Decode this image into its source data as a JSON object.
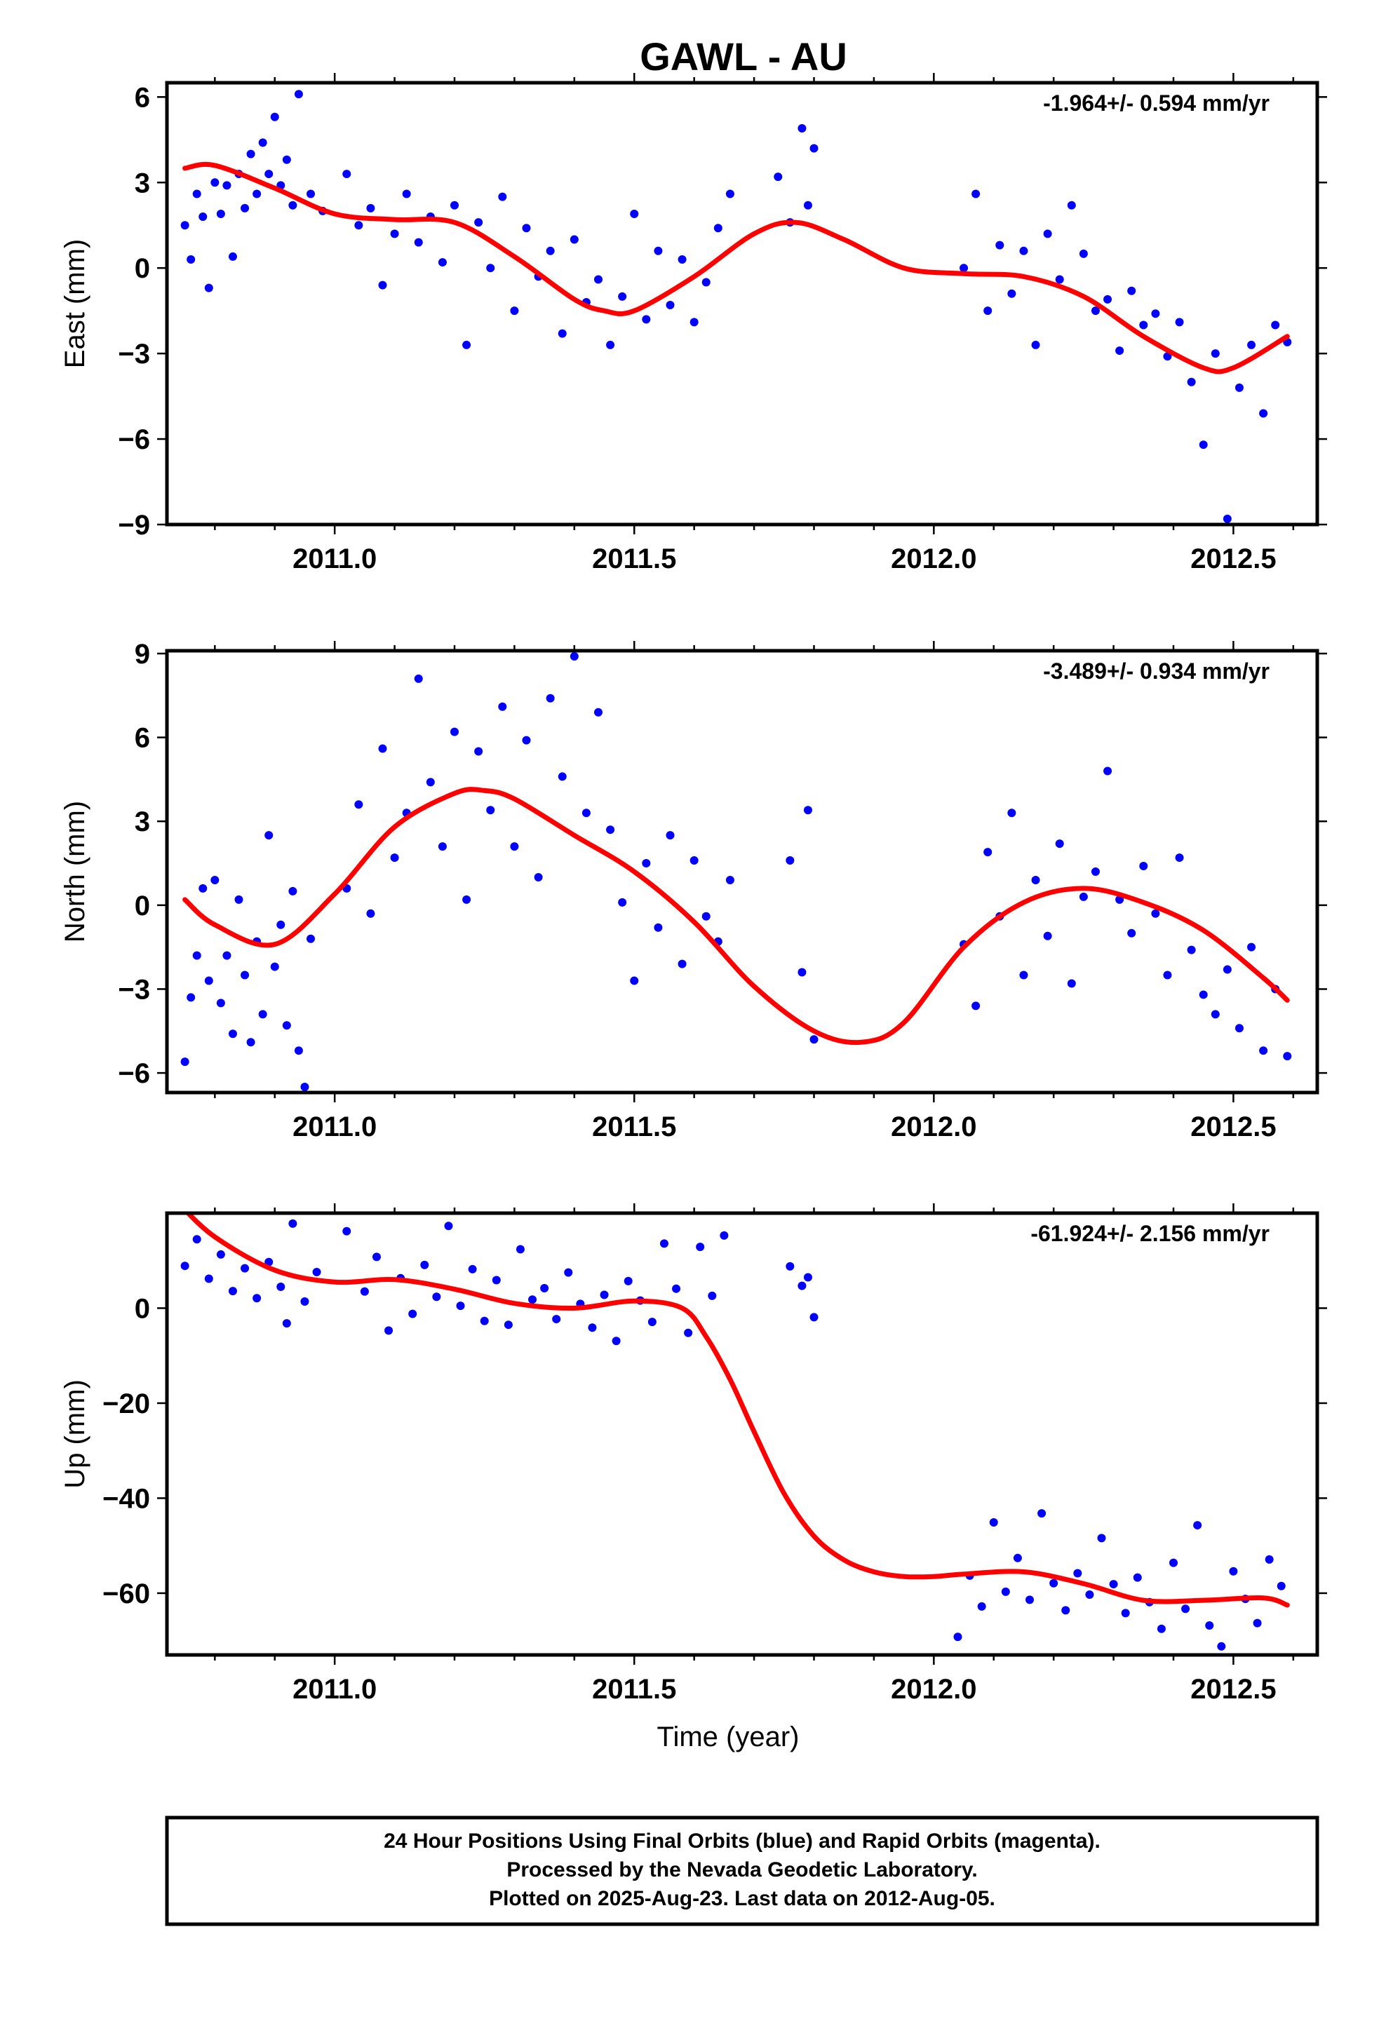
{
  "title": "GAWL - AU",
  "footer": [
    "24 Hour Positions Using Final Orbits (blue) and Rapid Orbits (magenta).",
    "Processed by the Nevada Geodetic Laboratory.",
    "Plotted on 2025-Aug-23. Last data on 2012-Aug-05."
  ],
  "colors": {
    "points": "#0000ff",
    "fit": "#ff0000",
    "frame": "#000000"
  },
  "chart_data": [
    {
      "type": "scatter",
      "component": "East",
      "ylabel": "East (mm)",
      "xlabel": "",
      "rate": "-1.964+/- 0.594 mm/yr",
      "xlim": [
        2010.72,
        2012.64
      ],
      "ylim": [
        -9,
        6.5
      ],
      "xticks": [
        2011.0,
        2011.5,
        2012.0,
        2012.5
      ],
      "xtick_labels": [
        "2011.0",
        "2011.5",
        "2012.0",
        "2012.5"
      ],
      "yticks": [
        -9,
        -6,
        -3,
        0,
        3,
        6
      ],
      "ytick_labels": [
        "−9",
        "−6",
        "−3",
        "0",
        "3",
        "6"
      ],
      "fit": {
        "x": [
          2010.75,
          2010.8,
          2010.9,
          2011.0,
          2011.1,
          2011.2,
          2011.3,
          2011.4,
          2011.45,
          2011.5,
          2011.6,
          2011.7,
          2011.77,
          2011.85,
          2011.95,
          2012.05,
          2012.15,
          2012.25,
          2012.35,
          2012.45,
          2012.5,
          2012.59
        ],
        "y": [
          3.5,
          3.6,
          2.8,
          1.9,
          1.7,
          1.6,
          0.4,
          -1.1,
          -1.5,
          -1.5,
          -0.3,
          1.2,
          1.6,
          1.0,
          0.0,
          -0.2,
          -0.3,
          -1.0,
          -2.4,
          -3.5,
          -3.5,
          -2.4
        ]
      },
      "series": [
        {
          "name": "Final Orbits",
          "x": [
            2010.75,
            2010.76,
            2010.77,
            2010.78,
            2010.79,
            2010.8,
            2010.81,
            2010.82,
            2010.83,
            2010.84,
            2010.85,
            2010.86,
            2010.87,
            2010.88,
            2010.89,
            2010.9,
            2010.91,
            2010.92,
            2010.93,
            2010.94,
            2010.96,
            2010.98,
            2011.02,
            2011.04,
            2011.06,
            2011.08,
            2011.1,
            2011.12,
            2011.14,
            2011.16,
            2011.18,
            2011.2,
            2011.22,
            2011.24,
            2011.26,
            2011.28,
            2011.3,
            2011.32,
            2011.34,
            2011.36,
            2011.38,
            2011.4,
            2011.42,
            2011.44,
            2011.46,
            2011.48,
            2011.5,
            2011.52,
            2011.54,
            2011.56,
            2011.58,
            2011.6,
            2011.62,
            2011.64,
            2011.66,
            2011.74,
            2011.76,
            2011.78,
            2011.79,
            2011.8,
            2012.05,
            2012.07,
            2012.09,
            2012.11,
            2012.13,
            2012.15,
            2012.17,
            2012.19,
            2012.21,
            2012.23,
            2012.25,
            2012.27,
            2012.29,
            2012.31,
            2012.33,
            2012.35,
            2012.37,
            2012.39,
            2012.41,
            2012.43,
            2012.45,
            2012.47,
            2012.49,
            2012.51,
            2012.53,
            2012.55,
            2012.57,
            2012.59
          ],
          "y": [
            1.5,
            0.3,
            2.6,
            1.8,
            -0.7,
            3.0,
            1.9,
            2.9,
            0.4,
            3.3,
            2.1,
            4.0,
            2.6,
            4.4,
            3.3,
            5.3,
            2.9,
            3.8,
            2.2,
            6.1,
            2.6,
            2.0,
            3.3,
            1.5,
            2.1,
            -0.6,
            1.2,
            2.6,
            0.9,
            1.8,
            0.2,
            2.2,
            -2.7,
            1.6,
            0.0,
            2.5,
            -1.5,
            1.4,
            -0.3,
            0.6,
            -2.3,
            1.0,
            -1.2,
            -0.4,
            -2.7,
            -1.0,
            1.9,
            -1.8,
            0.6,
            -1.3,
            0.3,
            -1.9,
            -0.5,
            1.4,
            2.6,
            3.2,
            1.6,
            4.9,
            2.2,
            4.2,
            0.0,
            2.6,
            -1.5,
            0.8,
            -0.9,
            0.6,
            -2.7,
            1.2,
            -0.4,
            2.2,
            0.5,
            -1.5,
            -1.1,
            -2.9,
            -0.8,
            -2.0,
            -1.6,
            -3.1,
            -1.9,
            -4.0,
            -6.2,
            -3.0,
            -8.8,
            -4.2,
            -2.7,
            -5.1,
            -2.0,
            -2.6
          ]
        }
      ]
    },
    {
      "type": "scatter",
      "component": "North",
      "ylabel": "North (mm)",
      "xlabel": "",
      "rate": "-3.489+/- 0.934 mm/yr",
      "xlim": [
        2010.72,
        2012.64
      ],
      "ylim": [
        -6.7,
        9.1
      ],
      "xticks": [
        2011.0,
        2011.5,
        2012.0,
        2012.5
      ],
      "xtick_labels": [
        "2011.0",
        "2011.5",
        "2012.0",
        "2012.5"
      ],
      "yticks": [
        -6,
        -3,
        0,
        3,
        6,
        9
      ],
      "ytick_labels": [
        "−6",
        "−3",
        "0",
        "3",
        "6",
        "9"
      ],
      "fit": {
        "x": [
          2010.75,
          2010.8,
          2010.9,
          2011.0,
          2011.1,
          2011.2,
          2011.25,
          2011.3,
          2011.4,
          2011.5,
          2011.6,
          2011.7,
          2011.8,
          2011.88,
          2011.95,
          2012.05,
          2012.15,
          2012.25,
          2012.35,
          2012.45,
          2012.55,
          2012.59
        ],
        "y": [
          0.2,
          -0.7,
          -1.4,
          0.4,
          2.8,
          4.0,
          4.1,
          3.8,
          2.5,
          1.2,
          -0.6,
          -2.9,
          -4.5,
          -4.9,
          -4.2,
          -1.5,
          0.1,
          0.6,
          0.1,
          -0.9,
          -2.6,
          -3.4
        ]
      },
      "series": [
        {
          "name": "Final Orbits",
          "x": [
            2010.75,
            2010.76,
            2010.77,
            2010.78,
            2010.79,
            2010.8,
            2010.81,
            2010.82,
            2010.83,
            2010.84,
            2010.85,
            2010.86,
            2010.87,
            2010.88,
            2010.89,
            2010.9,
            2010.91,
            2010.92,
            2010.93,
            2010.94,
            2010.95,
            2010.96,
            2011.02,
            2011.04,
            2011.06,
            2011.08,
            2011.1,
            2011.12,
            2011.14,
            2011.16,
            2011.18,
            2011.2,
            2011.22,
            2011.24,
            2011.26,
            2011.28,
            2011.3,
            2011.32,
            2011.34,
            2011.36,
            2011.38,
            2011.4,
            2011.42,
            2011.44,
            2011.46,
            2011.48,
            2011.5,
            2011.52,
            2011.54,
            2011.56,
            2011.58,
            2011.6,
            2011.62,
            2011.64,
            2011.66,
            2011.76,
            2011.78,
            2011.79,
            2011.8,
            2012.05,
            2012.07,
            2012.09,
            2012.11,
            2012.13,
            2012.15,
            2012.17,
            2012.19,
            2012.21,
            2012.23,
            2012.25,
            2012.27,
            2012.29,
            2012.31,
            2012.33,
            2012.35,
            2012.37,
            2012.39,
            2012.41,
            2012.43,
            2012.45,
            2012.47,
            2012.49,
            2012.51,
            2012.53,
            2012.55,
            2012.57,
            2012.59
          ],
          "y": [
            -5.6,
            -3.3,
            -1.8,
            0.6,
            -2.7,
            0.9,
            -3.5,
            -1.8,
            -4.6,
            0.2,
            -2.5,
            -4.9,
            -1.3,
            -3.9,
            2.5,
            -2.2,
            -0.7,
            -4.3,
            0.5,
            -5.2,
            -6.5,
            -1.2,
            0.6,
            3.6,
            -0.3,
            5.6,
            1.7,
            3.3,
            8.1,
            4.4,
            2.1,
            6.2,
            0.2,
            5.5,
            3.4,
            7.1,
            2.1,
            5.9,
            1.0,
            7.4,
            4.6,
            8.9,
            3.3,
            6.9,
            2.7,
            0.1,
            -2.7,
            1.5,
            -0.8,
            2.5,
            -2.1,
            1.6,
            -0.4,
            -1.3,
            0.9,
            1.6,
            -2.4,
            3.4,
            -4.8,
            -1.4,
            -3.6,
            1.9,
            -0.4,
            3.3,
            -2.5,
            0.9,
            -1.1,
            2.2,
            -2.8,
            0.3,
            1.2,
            4.8,
            0.2,
            -1.0,
            1.4,
            -0.3,
            -2.5,
            1.7,
            -1.6,
            -3.2,
            -3.9,
            -2.3,
            -4.4,
            -1.5,
            -5.2,
            -3.0,
            -5.4
          ]
        }
      ]
    },
    {
      "type": "scatter",
      "component": "Up",
      "ylabel": "Up (mm)",
      "xlabel": "Time (year)",
      "rate": "-61.924+/- 2.156 mm/yr",
      "xlim": [
        2010.72,
        2012.64
      ],
      "ylim": [
        -73,
        20
      ],
      "xticks": [
        2011.0,
        2011.5,
        2012.0,
        2012.5
      ],
      "xtick_labels": [
        "2011.0",
        "2011.5",
        "2012.0",
        "2012.5"
      ],
      "yticks": [
        -60,
        -40,
        -20,
        0
      ],
      "ytick_labels": [
        "−60",
        "−40",
        "−20",
        "0"
      ],
      "fit": {
        "x": [
          2010.74,
          2010.8,
          2010.9,
          2011.0,
          2011.1,
          2011.2,
          2011.3,
          2011.4,
          2011.5,
          2011.58,
          2011.62,
          2011.66,
          2011.7,
          2011.75,
          2011.8,
          2011.85,
          2011.9,
          2011.95,
          2012.0,
          2012.05,
          2012.15,
          2012.25,
          2012.35,
          2012.45,
          2012.55,
          2012.59
        ],
        "y": [
          22,
          15,
          8,
          5.5,
          6,
          4,
          1,
          0,
          1.5,
          0,
          -6,
          -15,
          -26,
          -39,
          -48,
          -53,
          -55.5,
          -56.5,
          -56.5,
          -56,
          -55.5,
          -58,
          -61.5,
          -61.5,
          -61,
          -62.5
        ]
      },
      "series": [
        {
          "name": "Final Orbits",
          "x": [
            2010.75,
            2010.77,
            2010.79,
            2010.81,
            2010.83,
            2010.85,
            2010.87,
            2010.89,
            2010.91,
            2010.92,
            2010.93,
            2010.95,
            2010.97,
            2011.02,
            2011.05,
            2011.07,
            2011.09,
            2011.11,
            2011.13,
            2011.15,
            2011.17,
            2011.19,
            2011.21,
            2011.23,
            2011.25,
            2011.27,
            2011.29,
            2011.31,
            2011.33,
            2011.35,
            2011.37,
            2011.39,
            2011.41,
            2011.43,
            2011.45,
            2011.47,
            2011.49,
            2011.51,
            2011.53,
            2011.55,
            2011.57,
            2011.59,
            2011.61,
            2011.63,
            2011.65,
            2011.76,
            2011.78,
            2011.79,
            2011.8,
            2012.04,
            2012.06,
            2012.08,
            2012.1,
            2012.12,
            2012.14,
            2012.16,
            2012.18,
            2012.2,
            2012.22,
            2012.24,
            2012.26,
            2012.28,
            2012.3,
            2012.32,
            2012.34,
            2012.36,
            2012.38,
            2012.4,
            2012.42,
            2012.44,
            2012.46,
            2012.48,
            2012.5,
            2012.52,
            2012.54,
            2012.56,
            2012.58
          ],
          "y": [
            8.9,
            14.5,
            6.2,
            11.3,
            3.6,
            8.4,
            2.1,
            9.7,
            4.5,
            -3.2,
            17.8,
            1.4,
            7.6,
            16.2,
            3.5,
            10.8,
            -4.7,
            6.3,
            -1.2,
            9.1,
            2.4,
            17.3,
            0.5,
            8.2,
            -2.7,
            5.9,
            -3.5,
            12.4,
            1.8,
            4.2,
            -2.3,
            7.5,
            0.9,
            -4.1,
            2.8,
            -6.9,
            5.7,
            1.6,
            -2.9,
            13.6,
            4.1,
            -5.2,
            12.9,
            2.6,
            15.3,
            8.8,
            4.7,
            6.5,
            -1.9,
            -69.2,
            -56.3,
            -62.8,
            -45.1,
            -59.7,
            -52.6,
            -61.4,
            -43.2,
            -57.9,
            -63.6,
            -55.8,
            -60.3,
            -48.4,
            -58.1,
            -64.2,
            -56.7,
            -61.9,
            -67.5,
            -53.6,
            -63.3,
            -45.7,
            -66.8,
            -71.2,
            -55.4,
            -61.2,
            -66.3,
            -52.9,
            -58.5
          ]
        }
      ]
    }
  ]
}
